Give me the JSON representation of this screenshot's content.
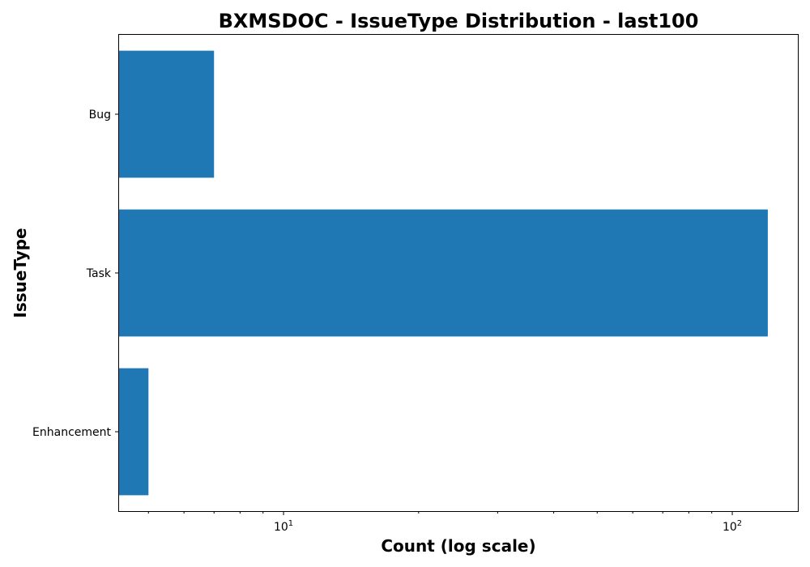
{
  "chart_data": {
    "type": "bar",
    "orientation": "horizontal",
    "title": "BXMSDOC - IssueType Distribution - last100",
    "xlabel": "Count (log scale)",
    "ylabel": "IssueType",
    "x_scale": "log",
    "xlim": [
      4.3,
      140
    ],
    "x_ticks": [
      {
        "value": 10,
        "base": "10",
        "exp": "1"
      },
      {
        "value": 100,
        "base": "10",
        "exp": "2"
      }
    ],
    "categories": [
      "Bug",
      "Task",
      "Enhancement"
    ],
    "values": [
      7,
      120,
      5
    ],
    "bar_color": "#1f77b4",
    "grid": false,
    "legend": false
  }
}
